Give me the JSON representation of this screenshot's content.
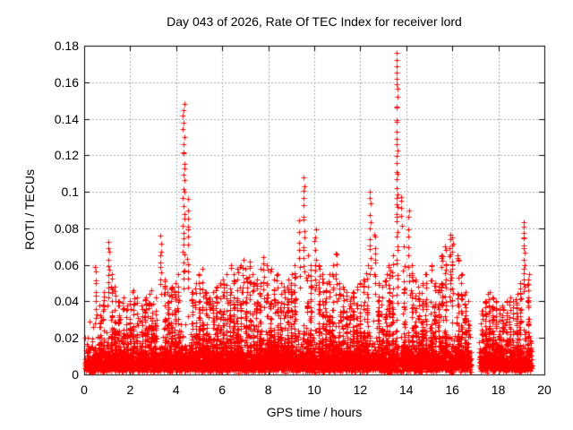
{
  "page": {
    "background": "#ffffff"
  },
  "chart_data": {
    "type": "scatter",
    "title": "Day 043 of 2026, Rate Of TEC Index for receiver lord",
    "xlabel": "GPS time / hours",
    "ylabel": "ROTI / TECUs",
    "xlim": [
      0,
      20
    ],
    "ylim": [
      0,
      0.18
    ],
    "xtick_labels": [
      "0",
      "2",
      "4",
      "6",
      "8",
      "10",
      "12",
      "14",
      "16",
      "18",
      "20"
    ],
    "ytick_labels": [
      "0",
      "0.02",
      "0.04",
      "0.06",
      "0.08",
      "0.1",
      "0.12",
      "0.14",
      "0.16",
      "0.18"
    ],
    "grid": {
      "style": "dashed",
      "color": "#a8a8a8"
    },
    "border_color": "#000000",
    "text_color": "#000000",
    "marker": {
      "shape": "plus",
      "color": "#ff0000",
      "size": 7
    },
    "legend": "none",
    "data_span": {
      "t_start": 0.03,
      "t_end": 19.45,
      "gaps": [
        [
          16.8,
          17.17
        ]
      ]
    },
    "base_band": {
      "count": 5600,
      "v_floor": 0.001,
      "v_typical": 0.012,
      "v_max": 0.033,
      "seed": 1337
    },
    "spikes": [
      {
        "t": 0.5,
        "vmin": 0.028,
        "vmax": 0.06,
        "n": 10,
        "w": 0.04
      },
      {
        "t": 1.05,
        "vmin": 0.038,
        "vmax": 0.072,
        "n": 12,
        "w": 0.08
      },
      {
        "t": 3.32,
        "vmin": 0.045,
        "vmax": 0.075,
        "n": 10,
        "w": 0.05
      },
      {
        "t": 4.32,
        "vmin": 0.048,
        "vmax": 0.147,
        "n": 30,
        "w": 0.06
      },
      {
        "t": 4.52,
        "vmin": 0.048,
        "vmax": 0.095,
        "n": 12,
        "w": 0.05
      },
      {
        "t": 6.9,
        "vmin": 0.038,
        "vmax": 0.062,
        "n": 8,
        "w": 0.05
      },
      {
        "t": 7.8,
        "vmin": 0.038,
        "vmax": 0.065,
        "n": 8,
        "w": 0.05
      },
      {
        "t": 9.35,
        "vmin": 0.048,
        "vmax": 0.085,
        "n": 8,
        "w": 0.05
      },
      {
        "t": 9.55,
        "vmin": 0.055,
        "vmax": 0.107,
        "n": 14,
        "w": 0.05
      },
      {
        "t": 10.05,
        "vmin": 0.045,
        "vmax": 0.08,
        "n": 10,
        "w": 0.05
      },
      {
        "t": 10.95,
        "vmin": 0.04,
        "vmax": 0.068,
        "n": 8,
        "w": 0.05
      },
      {
        "t": 12.42,
        "vmin": 0.055,
        "vmax": 0.1,
        "n": 12,
        "w": 0.05
      },
      {
        "t": 12.65,
        "vmin": 0.045,
        "vmax": 0.078,
        "n": 10,
        "w": 0.06
      },
      {
        "t": 13.58,
        "vmin": 0.088,
        "vmax": 0.176,
        "n": 26,
        "w": 0.05
      },
      {
        "t": 13.6,
        "vmin": 0.04,
        "vmax": 0.09,
        "n": 14,
        "w": 0.08
      },
      {
        "t": 13.78,
        "vmin": 0.082,
        "vmax": 0.098,
        "n": 5,
        "w": 0.04
      },
      {
        "t": 14.1,
        "vmin": 0.045,
        "vmax": 0.09,
        "n": 10,
        "w": 0.06
      },
      {
        "t": 15.95,
        "vmin": 0.038,
        "vmax": 0.077,
        "n": 25,
        "w": 0.15
      },
      {
        "t": 19.12,
        "vmin": 0.045,
        "vmax": 0.084,
        "n": 16,
        "w": 0.06
      }
    ],
    "bumps": [
      [
        0.7,
        0.038
      ],
      [
        0.85,
        0.045
      ],
      [
        1.2,
        0.055
      ],
      [
        1.35,
        0.048
      ],
      [
        1.5,
        0.04
      ],
      [
        1.7,
        0.042
      ],
      [
        1.85,
        0.038
      ],
      [
        2.0,
        0.04
      ],
      [
        2.15,
        0.046
      ],
      [
        2.3,
        0.042
      ],
      [
        2.5,
        0.038
      ],
      [
        2.65,
        0.042
      ],
      [
        2.8,
        0.044
      ],
      [
        2.95,
        0.046
      ],
      [
        3.1,
        0.042
      ],
      [
        3.5,
        0.052
      ],
      [
        3.65,
        0.045
      ],
      [
        3.8,
        0.048
      ],
      [
        3.95,
        0.05
      ],
      [
        4.1,
        0.055
      ],
      [
        4.7,
        0.045
      ],
      [
        4.85,
        0.05
      ],
      [
        5.0,
        0.055
      ],
      [
        5.15,
        0.058
      ],
      [
        5.3,
        0.045
      ],
      [
        5.45,
        0.042
      ],
      [
        5.6,
        0.045
      ],
      [
        5.75,
        0.048
      ],
      [
        5.9,
        0.05
      ],
      [
        6.05,
        0.052
      ],
      [
        6.2,
        0.055
      ],
      [
        6.35,
        0.06
      ],
      [
        6.5,
        0.055
      ],
      [
        6.65,
        0.058
      ],
      [
        6.8,
        0.06
      ],
      [
        7.05,
        0.058
      ],
      [
        7.2,
        0.062
      ],
      [
        7.35,
        0.055
      ],
      [
        7.5,
        0.052
      ],
      [
        7.65,
        0.058
      ],
      [
        7.95,
        0.06
      ],
      [
        8.1,
        0.058
      ],
      [
        8.25,
        0.052
      ],
      [
        8.4,
        0.055
      ],
      [
        8.55,
        0.05
      ],
      [
        8.7,
        0.048
      ],
      [
        8.85,
        0.052
      ],
      [
        9.0,
        0.055
      ],
      [
        9.15,
        0.06
      ],
      [
        9.7,
        0.065
      ],
      [
        9.85,
        0.06
      ],
      [
        10.2,
        0.06
      ],
      [
        10.35,
        0.055
      ],
      [
        10.5,
        0.05
      ],
      [
        10.65,
        0.055
      ],
      [
        10.8,
        0.06
      ],
      [
        11.1,
        0.05
      ],
      [
        11.25,
        0.048
      ],
      [
        11.4,
        0.045
      ],
      [
        11.55,
        0.042
      ],
      [
        11.7,
        0.045
      ],
      [
        11.85,
        0.048
      ],
      [
        12.0,
        0.05
      ],
      [
        12.15,
        0.052
      ],
      [
        12.3,
        0.06
      ],
      [
        12.8,
        0.05
      ],
      [
        12.95,
        0.048
      ],
      [
        13.1,
        0.055
      ],
      [
        13.25,
        0.06
      ],
      [
        13.4,
        0.065
      ],
      [
        13.9,
        0.07
      ],
      [
        14.25,
        0.06
      ],
      [
        14.4,
        0.052
      ],
      [
        14.55,
        0.048
      ],
      [
        14.7,
        0.05
      ],
      [
        14.85,
        0.055
      ],
      [
        15.1,
        0.06
      ],
      [
        15.25,
        0.05
      ],
      [
        15.4,
        0.048
      ],
      [
        15.55,
        0.065
      ],
      [
        15.7,
        0.07
      ],
      [
        16.25,
        0.065
      ],
      [
        16.4,
        0.055
      ],
      [
        16.55,
        0.045
      ],
      [
        16.7,
        0.04
      ],
      [
        17.3,
        0.035
      ],
      [
        17.45,
        0.04
      ],
      [
        17.6,
        0.045
      ],
      [
        17.75,
        0.042
      ],
      [
        17.9,
        0.04
      ],
      [
        18.05,
        0.036
      ],
      [
        18.2,
        0.038
      ],
      [
        18.35,
        0.04
      ],
      [
        18.5,
        0.042
      ],
      [
        18.65,
        0.04
      ],
      [
        18.8,
        0.044
      ],
      [
        18.95,
        0.05
      ],
      [
        19.3,
        0.055
      ]
    ]
  }
}
